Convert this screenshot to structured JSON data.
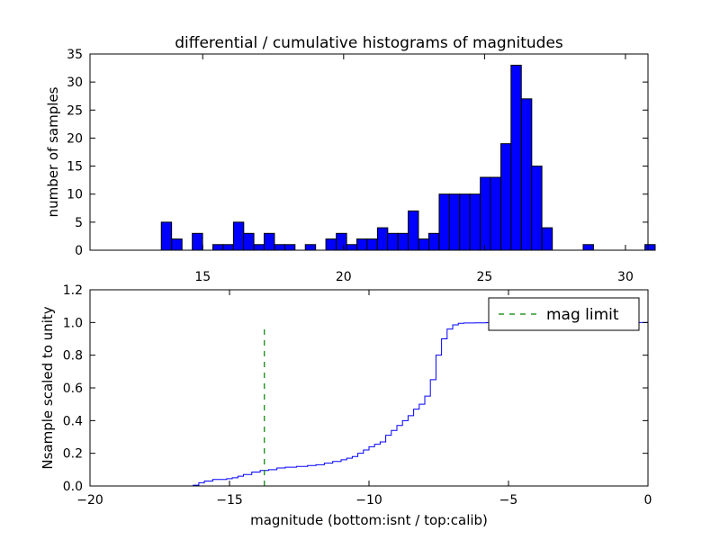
{
  "chart_data": [
    {
      "type": "bar",
      "title": "differential / cumulative histograms of magnitudes",
      "xlabel": "",
      "ylabel": "number of samples",
      "xlim": [
        11.0,
        30.8
      ],
      "ylim": [
        0,
        35
      ],
      "xticks": [
        15,
        20,
        25,
        30
      ],
      "yticks": [
        0,
        5,
        10,
        15,
        20,
        25,
        30,
        35
      ],
      "bar_color": "#0000ff",
      "bin_width": 0.365,
      "bins": [
        {
          "x": 13.53,
          "value": 5
        },
        {
          "x": 13.9,
          "value": 2
        },
        {
          "x": 14.63,
          "value": 3
        },
        {
          "x": 15.36,
          "value": 1
        },
        {
          "x": 15.72,
          "value": 1
        },
        {
          "x": 16.09,
          "value": 5
        },
        {
          "x": 16.45,
          "value": 3
        },
        {
          "x": 16.82,
          "value": 1
        },
        {
          "x": 17.18,
          "value": 3
        },
        {
          "x": 17.55,
          "value": 1
        },
        {
          "x": 17.91,
          "value": 1
        },
        {
          "x": 18.64,
          "value": 1
        },
        {
          "x": 19.37,
          "value": 2
        },
        {
          "x": 19.74,
          "value": 3
        },
        {
          "x": 20.1,
          "value": 1
        },
        {
          "x": 20.47,
          "value": 2
        },
        {
          "x": 20.83,
          "value": 2
        },
        {
          "x": 21.2,
          "value": 4
        },
        {
          "x": 21.56,
          "value": 3
        },
        {
          "x": 21.93,
          "value": 3
        },
        {
          "x": 22.29,
          "value": 7
        },
        {
          "x": 22.66,
          "value": 2
        },
        {
          "x": 23.02,
          "value": 3
        },
        {
          "x": 23.39,
          "value": 10
        },
        {
          "x": 23.75,
          "value": 10
        },
        {
          "x": 24.12,
          "value": 10
        },
        {
          "x": 24.48,
          "value": 10
        },
        {
          "x": 24.85,
          "value": 13
        },
        {
          "x": 25.21,
          "value": 13
        },
        {
          "x": 25.58,
          "value": 19
        },
        {
          "x": 25.94,
          "value": 33
        },
        {
          "x": 26.31,
          "value": 27
        },
        {
          "x": 26.67,
          "value": 15
        },
        {
          "x": 27.04,
          "value": 4
        },
        {
          "x": 28.5,
          "value": 1
        },
        {
          "x": 30.69,
          "value": 1
        }
      ]
    },
    {
      "type": "line",
      "title": "",
      "xlabel": "magnitude (bottom:isnt / top:calib)",
      "ylabel": "Nsample scaled to unity",
      "xlim": [
        -20,
        0
      ],
      "ylim": [
        0.0,
        1.2
      ],
      "xticks": [
        -20,
        -15,
        -10,
        -5,
        0
      ],
      "xtick_labels": [
        "−20",
        "−15",
        "−10",
        "−5",
        "0"
      ],
      "yticks": [
        0.0,
        0.2,
        0.4,
        0.6,
        0.8,
        1.0,
        1.2
      ],
      "ytick_labels": [
        "0.0",
        "0.2",
        "0.4",
        "0.6",
        "0.8",
        "1.0",
        "1.2"
      ],
      "series": [
        {
          "color": "#0000ff",
          "style": "step",
          "x": [
            -20,
            -16.3,
            -16.1,
            -15.9,
            -15.6,
            -15.1,
            -14.9,
            -14.7,
            -14.5,
            -14.2,
            -13.9,
            -13.6,
            -13.3,
            -13.0,
            -12.6,
            -12.2,
            -11.9,
            -11.6,
            -11.3,
            -11.0,
            -10.8,
            -10.6,
            -10.4,
            -10.2,
            -10.0,
            -9.8,
            -9.6,
            -9.4,
            -9.2,
            -9.0,
            -8.8,
            -8.6,
            -8.4,
            -8.2,
            -8.0,
            -7.8,
            -7.6,
            -7.4,
            -7.2,
            -7.0,
            -6.8,
            -6.6,
            -6.2,
            -5.8,
            -5.4,
            -5.0,
            -4.6,
            -4.2,
            -0.05,
            0.0
          ],
          "y": [
            0.0,
            0.005,
            0.02,
            0.03,
            0.04,
            0.045,
            0.05,
            0.06,
            0.07,
            0.085,
            0.095,
            0.1,
            0.11,
            0.115,
            0.12,
            0.125,
            0.13,
            0.14,
            0.15,
            0.16,
            0.17,
            0.18,
            0.2,
            0.22,
            0.24,
            0.255,
            0.27,
            0.31,
            0.34,
            0.37,
            0.4,
            0.43,
            0.47,
            0.5,
            0.55,
            0.65,
            0.8,
            0.9,
            0.96,
            0.985,
            0.995,
            0.997,
            0.998,
            0.999,
            1.0,
            1.0,
            1.0,
            1.0,
            1.0,
            0.0
          ]
        }
      ],
      "mag_limit": {
        "x": -13.75,
        "y_top": 0.97,
        "color": "#008000"
      },
      "legend": {
        "placement": "top-right",
        "label": "mag limit"
      }
    }
  ]
}
